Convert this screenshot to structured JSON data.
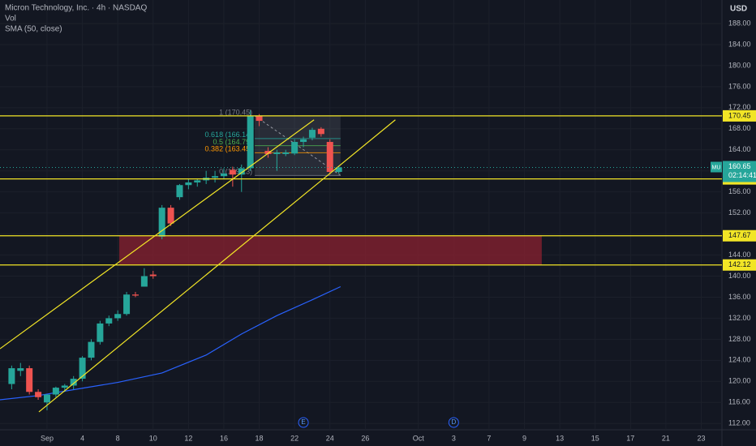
{
  "chart_data": {
    "type": "candlestick",
    "title": "Micron Technology, Inc. · 4h · NASDAQ",
    "volume_label": "Vol",
    "currency": "USD",
    "ticker": "MU",
    "up_color": "#26a69a",
    "down_color": "#ef5350",
    "x": [
      -2,
      -1.5,
      -1,
      -0.5,
      0,
      0.5,
      1,
      1.5,
      2,
      2.5,
      3,
      3.5,
      4,
      4.5,
      5,
      5.5,
      6,
      6.5,
      7,
      7.5,
      8,
      8.5,
      9,
      9.5,
      10,
      10.5,
      11,
      11.5,
      12,
      12.5,
      13,
      13.5,
      14,
      14.5,
      15,
      15.5,
      16,
      16.5
    ],
    "open": [
      119.5,
      122,
      122.5,
      118,
      116,
      117.5,
      118.8,
      119.2,
      120.5,
      124.5,
      127.5,
      131,
      132,
      132.8,
      136.5,
      138,
      140.3,
      147.5,
      153,
      155,
      157.3,
      157.8,
      158.2,
      158.7,
      159,
      160.2,
      159.3,
      160.5,
      170.5,
      163.8,
      163.2,
      163.2,
      163.3,
      165.5,
      166.3,
      168,
      165.5,
      159.8
    ],
    "high": [
      123,
      123.5,
      123,
      118.5,
      117.5,
      119,
      119.5,
      121,
      124.8,
      128,
      131.5,
      132.5,
      133.5,
      137,
      137,
      141.5,
      141,
      153.5,
      153.5,
      157.5,
      158.5,
      158.5,
      160,
      160,
      160.5,
      160.8,
      161.2,
      171.5,
      170.8,
      164.5,
      164,
      164,
      166,
      166.5,
      168.2,
      168.3,
      166,
      160.9
    ],
    "low": [
      118.5,
      121,
      117.5,
      116.5,
      114.5,
      117,
      118,
      118.5,
      120,
      124,
      127,
      130.5,
      131.5,
      132.5,
      136,
      138,
      139.5,
      147,
      149.5,
      154.5,
      156.5,
      157,
      157.5,
      157.8,
      158.5,
      157,
      156,
      160,
      168.5,
      162.5,
      160,
      162.8,
      163,
      164.5,
      165.8,
      166.5,
      159.3,
      159.5
    ],
    "close": [
      122.5,
      122.5,
      118,
      117,
      117.5,
      118.8,
      119.2,
      120.5,
      124.5,
      127.5,
      131,
      132,
      132.8,
      136.5,
      136.3,
      140,
      140,
      153,
      150,
      157.3,
      157.8,
      158.2,
      158.7,
      159,
      159.5,
      159.3,
      160.5,
      170.5,
      169.5,
      163.2,
      163.5,
      163.5,
      165.5,
      166,
      167.8,
      167,
      159.8,
      160.65
    ],
    "sma": {
      "name": "SMA (50, close)",
      "color": "#2962ff",
      "x": [
        -2.66,
        -0.5,
        2,
        4,
        6.5,
        9,
        11,
        13,
        15,
        16.6
      ],
      "values": [
        116.5,
        117.3,
        118.7,
        119.8,
        121.6,
        125,
        129,
        132.5,
        135.5,
        138
      ]
    },
    "levels": {
      "color": "#f2e526",
      "values": [
        170.45,
        158.47,
        147.67,
        142.12
      ]
    },
    "zone": {
      "color": "#8b2230",
      "x": [
        4.08,
        27.98
      ],
      "y": [
        142.12,
        147.67
      ]
    },
    "channel": {
      "color": "#f2e526",
      "lines": [
        {
          "x": [
            -2.66,
            15.1
          ],
          "y": [
            126.2,
            169.7
          ]
        },
        {
          "x": [
            -0.46,
            19.7
          ],
          "y": [
            114.2,
            169.7
          ]
        }
      ]
    },
    "fib": {
      "x": [
        11.75,
        16.6
      ],
      "levels": [
        {
          "value": 170.45,
          "label": "1 (170.45)",
          "color": "#787b86"
        },
        {
          "value": 166.14,
          "label": "0.618 (166.14)",
          "color": "#26a69a"
        },
        {
          "value": 164.79,
          "label": "0.5 (164.79)",
          "color": "#4caf50"
        },
        {
          "value": 163.45,
          "label": "0.382 (163.45)",
          "color": "#ff9800"
        },
        {
          "value": 159.13,
          "label": "0 (159.13)",
          "color": "#787b86"
        }
      ]
    },
    "last_price": {
      "value": 160.65,
      "countdown": "02:14:41",
      "color": "#26a69a"
    },
    "events": [
      {
        "x": 14.5,
        "label": "E"
      },
      {
        "x": 23,
        "label": "D"
      }
    ],
    "xlim": [
      -2.66,
      38.17
    ],
    "ylim": [
      110.8,
      192.47
    ],
    "xticks": [
      {
        "value": 0,
        "label": "Sep"
      },
      {
        "value": 2,
        "label": "4"
      },
      {
        "value": 4,
        "label": "8"
      },
      {
        "value": 6,
        "label": "10"
      },
      {
        "value": 8,
        "label": "12"
      },
      {
        "value": 10,
        "label": "16"
      },
      {
        "value": 12,
        "label": "18"
      },
      {
        "value": 14,
        "label": "22"
      },
      {
        "value": 16,
        "label": "24"
      },
      {
        "value": 18,
        "label": "26"
      },
      {
        "value": 21,
        "label": "Oct"
      },
      {
        "value": 23,
        "label": "3"
      },
      {
        "value": 25,
        "label": "7"
      },
      {
        "value": 27,
        "label": "9"
      },
      {
        "value": 29,
        "label": "13"
      },
      {
        "value": 31,
        "label": "15"
      },
      {
        "value": 33,
        "label": "17"
      },
      {
        "value": 35,
        "label": "21"
      },
      {
        "value": 37,
        "label": "23"
      }
    ],
    "yticks": [
      {
        "value": 112,
        "label": "112.00"
      },
      {
        "value": 116,
        "label": "116.00"
      },
      {
        "value": 120,
        "label": "120.00"
      },
      {
        "value": 124,
        "label": "124.00"
      },
      {
        "value": 128,
        "label": "128.00"
      },
      {
        "value": 132,
        "label": "132.00"
      },
      {
        "value": 136,
        "label": "136.00"
      },
      {
        "value": 140,
        "label": "140.00"
      },
      {
        "value": 144,
        "label": "144.00"
      },
      {
        "value": 148,
        "label": "148.00"
      },
      {
        "value": 152,
        "label": "152.00"
      },
      {
        "value": 156,
        "label": "156.00"
      },
      {
        "value": 160,
        "label": "160.00"
      },
      {
        "value": 164,
        "label": "164.00"
      },
      {
        "value": 168,
        "label": "168.00"
      },
      {
        "value": 172,
        "label": "172.00"
      },
      {
        "value": 176,
        "label": "176.00"
      },
      {
        "value": 180,
        "label": "180.00"
      },
      {
        "value": 184,
        "label": "184.00"
      },
      {
        "value": 188,
        "label": "188.00"
      }
    ]
  }
}
